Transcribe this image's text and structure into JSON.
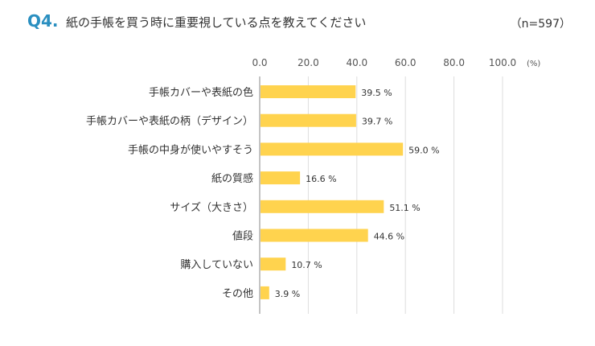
{
  "question": {
    "number": "Q4.",
    "text": "紙の手帳を買う時に重要視している点を教えてください",
    "sample_size": "（n=597）"
  },
  "chart_data": {
    "type": "bar",
    "orientation": "horizontal",
    "categories": [
      "手帳カバーや表紙の色",
      "手帳カバーや表紙の柄（デザイン）",
      "手帳の中身が使いやすそう",
      "紙の質感",
      "サイズ（大きさ）",
      "値段",
      "購入していない",
      "その他"
    ],
    "values": [
      39.5,
      39.7,
      59.0,
      16.6,
      51.1,
      44.6,
      10.7,
      3.9
    ],
    "value_labels": [
      "39.5 %",
      "39.7 %",
      "59.0 %",
      "16.6 %",
      "51.1 %",
      "44.6 %",
      "10.7 %",
      "3.9 %"
    ],
    "xlim": [
      0,
      100
    ],
    "ticks": [
      0,
      20,
      40,
      60,
      80,
      100
    ],
    "tick_labels": [
      "0.0",
      "20.0",
      "40.0",
      "60.0",
      "80.0",
      "100.0"
    ],
    "unit_label": "(%)",
    "grid": true,
    "bar_color": "#ffd34e",
    "grid_color": "#dddddd"
  }
}
